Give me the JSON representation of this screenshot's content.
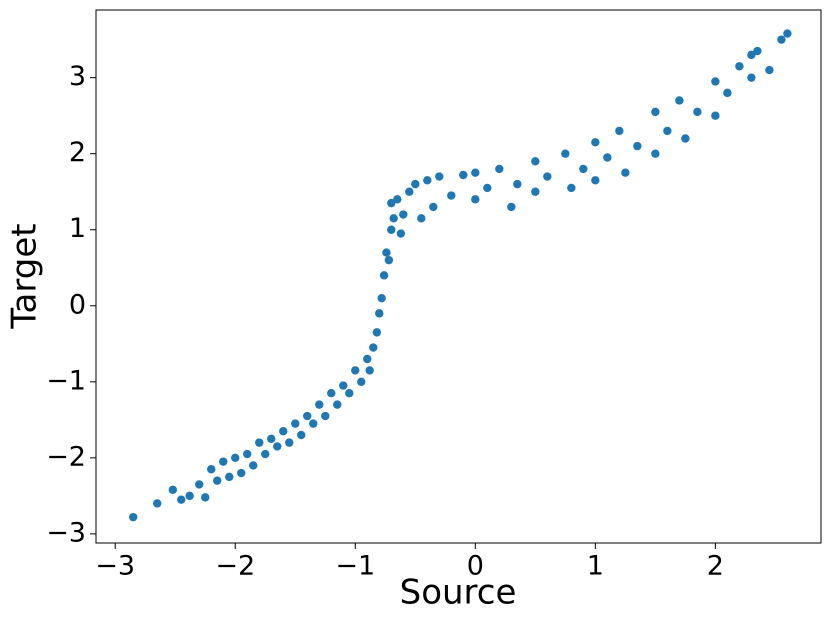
{
  "chart_data": {
    "type": "scatter",
    "x_label": "Source",
    "y_label": "Target",
    "color": "#1f77b4",
    "xlim": [
      -3.16,
      2.88
    ],
    "ylim": [
      -3.12,
      3.89
    ],
    "xticks": [
      {
        "value": -3,
        "label": "−3"
      },
      {
        "value": -2,
        "label": "−2"
      },
      {
        "value": -1,
        "label": "−1"
      },
      0,
      1,
      2
    ],
    "yticks": [
      {
        "value": -3,
        "label": "−3"
      },
      {
        "value": -2,
        "label": "−2"
      },
      {
        "value": -1,
        "label": "−1"
      },
      0,
      1,
      2,
      3
    ],
    "x": [
      -2.85,
      -2.65,
      -2.52,
      -2.45,
      -2.38,
      -2.3,
      -2.25,
      -2.2,
      -2.15,
      -2.1,
      -2.05,
      -2.0,
      -1.95,
      -1.9,
      -1.85,
      -1.8,
      -1.75,
      -1.7,
      -1.65,
      -1.6,
      -1.55,
      -1.5,
      -1.45,
      -1.4,
      -1.35,
      -1.3,
      -1.25,
      -1.2,
      -1.15,
      -1.1,
      -1.05,
      -1.0,
      -0.95,
      -0.9,
      -0.88,
      -0.85,
      -0.82,
      -0.8,
      -0.78,
      -0.76,
      -0.74,
      -0.72,
      -0.7,
      -0.7,
      -0.68,
      -0.65,
      -0.62,
      -0.6,
      -0.55,
      -0.5,
      -0.45,
      -0.4,
      -0.35,
      -0.3,
      -0.2,
      -0.1,
      0.0,
      0.0,
      0.1,
      0.2,
      0.3,
      0.35,
      0.5,
      0.5,
      0.6,
      0.75,
      0.8,
      0.9,
      1.0,
      1.0,
      1.1,
      1.2,
      1.25,
      1.35,
      1.5,
      1.5,
      1.6,
      1.7,
      1.75,
      1.85,
      2.0,
      2.0,
      2.1,
      2.2,
      2.3,
      2.3,
      2.35,
      2.45,
      2.55,
      2.6
    ],
    "y": [
      -2.78,
      -2.6,
      -2.42,
      -2.55,
      -2.5,
      -2.35,
      -2.52,
      -2.15,
      -2.3,
      -2.05,
      -2.25,
      -2.0,
      -2.2,
      -1.95,
      -2.1,
      -1.8,
      -1.95,
      -1.75,
      -1.85,
      -1.65,
      -1.8,
      -1.55,
      -1.7,
      -1.45,
      -1.55,
      -1.3,
      -1.45,
      -1.15,
      -1.3,
      -1.05,
      -1.15,
      -0.85,
      -1.0,
      -0.7,
      -0.85,
      -0.55,
      -0.35,
      -0.1,
      0.1,
      0.4,
      0.7,
      0.6,
      1.0,
      1.35,
      1.15,
      1.4,
      0.95,
      1.2,
      1.5,
      1.6,
      1.15,
      1.65,
      1.3,
      1.7,
      1.45,
      1.72,
      1.75,
      1.4,
      1.55,
      1.8,
      1.3,
      1.6,
      1.9,
      1.5,
      1.7,
      2.0,
      1.55,
      1.8,
      2.15,
      1.65,
      1.95,
      2.3,
      1.75,
      2.1,
      2.55,
      2.0,
      2.3,
      2.7,
      2.2,
      2.55,
      2.95,
      2.5,
      2.8,
      3.15,
      3.3,
      3.0,
      3.35,
      3.1,
      3.5,
      3.58
    ]
  }
}
